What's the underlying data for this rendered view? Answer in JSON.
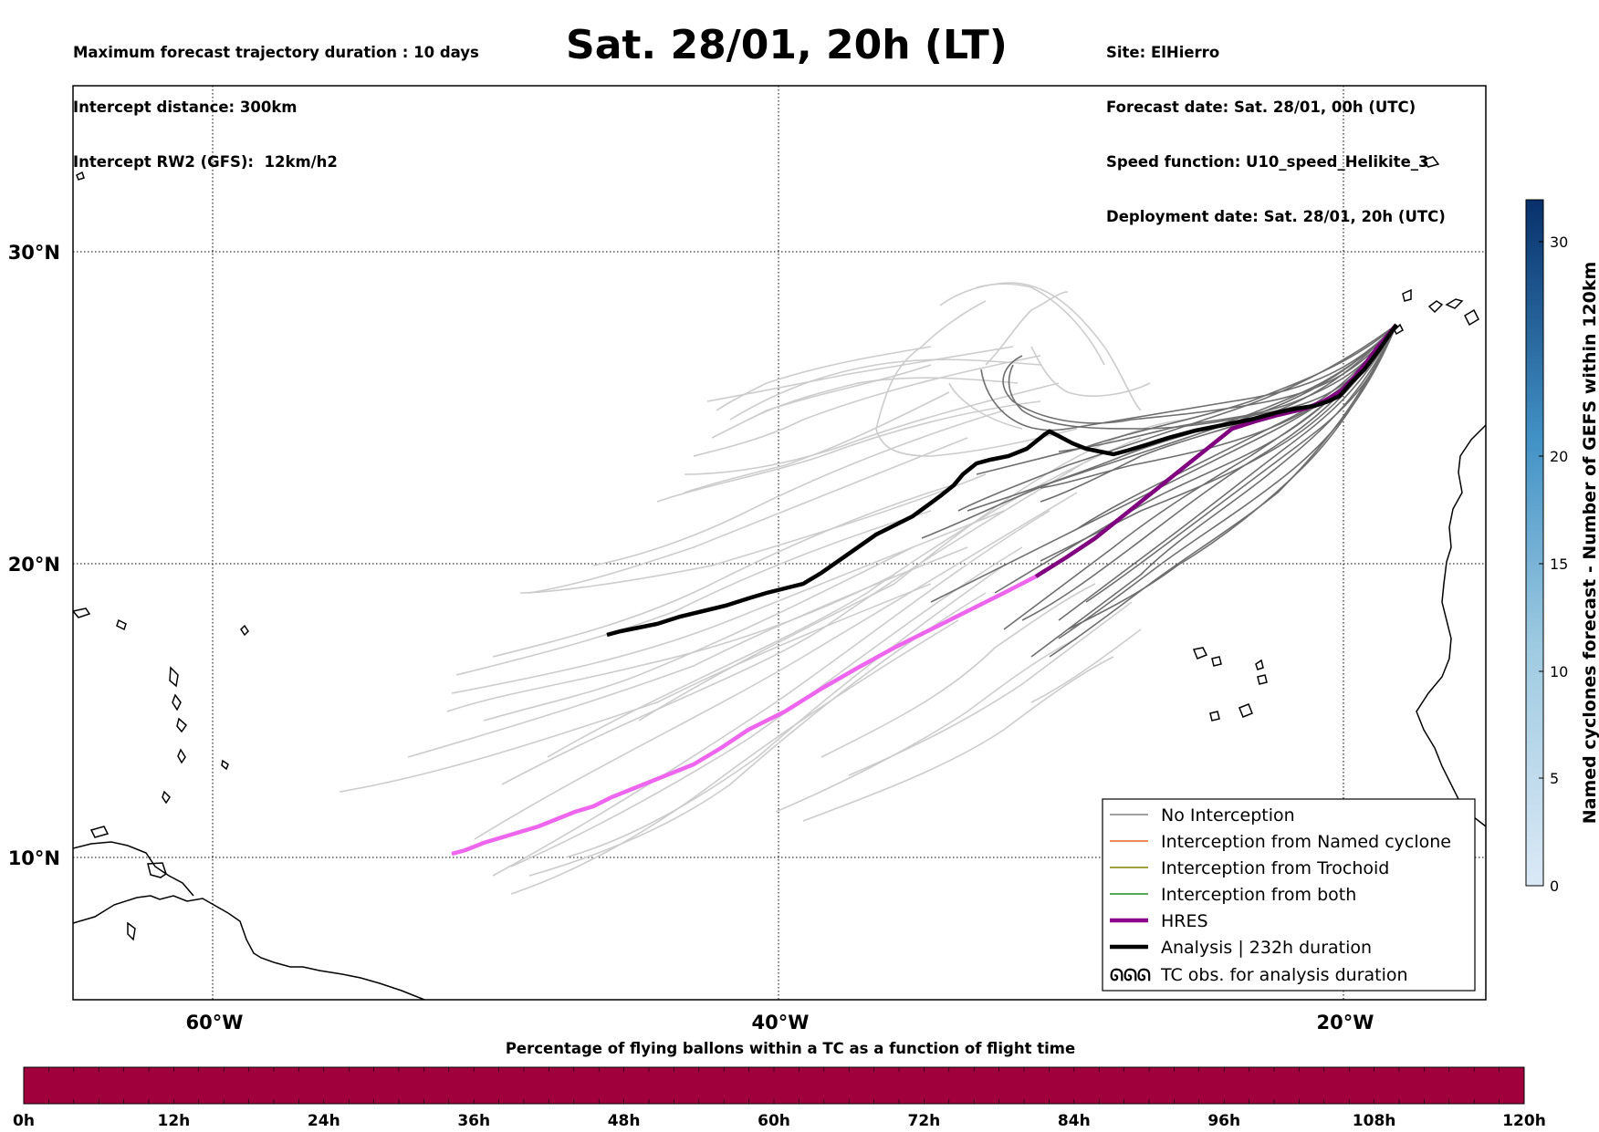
{
  "header": {
    "left_lines": [
      "Maximum forecast trajectory duration : 10 days",
      "Intercept distance: 300km",
      "Intercept RW2 (GFS):  12km/h2"
    ],
    "title": "Sat. 28/01, 20h (LT)",
    "right_lines": [
      "Site: ElHierro",
      "Forecast date: Sat. 28/01, 00h (UTC)",
      "Speed function: U10_speed_Helikite_3",
      "Deployment date: Sat. 28/01, 20h (UTC)"
    ]
  },
  "map": {
    "lat_labels": [
      "30°N",
      "20°N",
      "10°N"
    ],
    "lon_labels": [
      "60°W",
      "40°W",
      "20°W"
    ],
    "lat_ticks": [
      30,
      20,
      10
    ],
    "lon_ticks": [
      -60,
      -40,
      -20
    ]
  },
  "legend": {
    "items": [
      {
        "label": "No Interception",
        "color": "#808080",
        "style": "thin"
      },
      {
        "label": "Interception from Named cyclone",
        "color": "#e8641e",
        "style": "thin"
      },
      {
        "label": "Interception from Trochoid",
        "color": "#808000",
        "style": "thin"
      },
      {
        "label": "Interception from both",
        "color": "#228b22",
        "style": "thin"
      },
      {
        "label": "HRES",
        "color": "#8b008b",
        "style": "thick"
      },
      {
        "label": "Analysis | 232h duration",
        "color": "#000000",
        "style": "thick"
      },
      {
        "label": "TC obs. for analysis duration",
        "color": "#000000",
        "style": "symbol",
        "symbol_text": "ᘏᘏᘏ"
      }
    ]
  },
  "colorbar_right": {
    "label": "Named cyclones forecast - Number of GEFS within 120km",
    "ticks": [
      "0",
      "5",
      "10",
      "15",
      "20",
      "30"
    ],
    "colors": [
      "#d6e4f2",
      "#08306b"
    ]
  },
  "bottom_bar": {
    "title": "Percentage of flying ballons within a TC as a function of flight time",
    "ticks": [
      "0h",
      "12h",
      "24h",
      "36h",
      "48h",
      "60h",
      "72h",
      "84h",
      "96h",
      "108h",
      "120h"
    ],
    "color": "#a0003c"
  },
  "colors": {
    "grey_light": "#cccccc",
    "grey_dark": "#6e6e6e",
    "hres_early": "#800080",
    "hres_late": "#ee66ee",
    "analysis": "#000000"
  }
}
